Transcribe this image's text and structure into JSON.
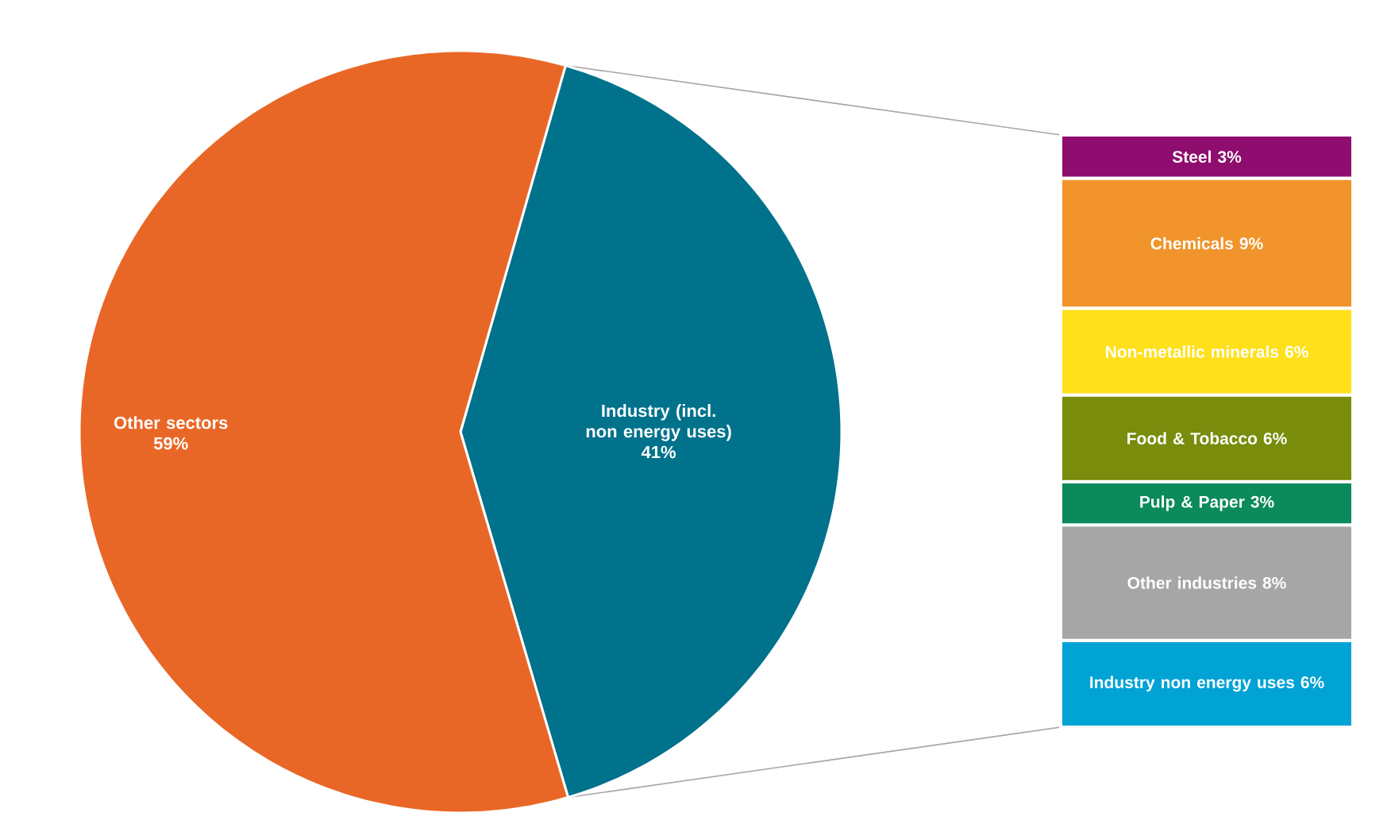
{
  "chart_data": [
    {
      "type": "pie",
      "categories": [
        "Industry (incl. non energy uses)",
        "Other sectors"
      ],
      "values": [
        41,
        59
      ],
      "value_labels": [
        "41%",
        "59%"
      ],
      "colors": [
        "#00728c",
        "#e96726"
      ]
    },
    {
      "type": "bar",
      "stacked": true,
      "tick_labels": false,
      "categories": [
        null
      ],
      "series": [
        {
          "name": "Industry non energy uses",
          "color": "#00a3d4",
          "values": [
            6
          ],
          "value_labels": [
            "6%"
          ]
        },
        {
          "name": "Other industries",
          "color": "#a6a6a6",
          "values": [
            8
          ],
          "value_labels": [
            "8%"
          ]
        },
        {
          "name": "Pulp & Paper",
          "color": "#0b8a5c",
          "values": [
            3
          ],
          "value_labels": [
            "3%"
          ]
        },
        {
          "name": "Food & Tobacco",
          "color": "#7a8c0c",
          "values": [
            6
          ],
          "value_labels": [
            "6%"
          ]
        },
        {
          "name": "Non-metallic minerals",
          "color": "#ffe01b",
          "values": [
            6
          ],
          "value_labels": [
            "6%"
          ]
        },
        {
          "name": "Chemicals",
          "color": "#f0942b",
          "values": [
            9
          ],
          "value_labels": [
            "9%"
          ]
        },
        {
          "name": "Steel",
          "color": "#8e0d6e",
          "values": [
            3
          ],
          "value_labels": [
            "3%"
          ]
        }
      ]
    }
  ]
}
